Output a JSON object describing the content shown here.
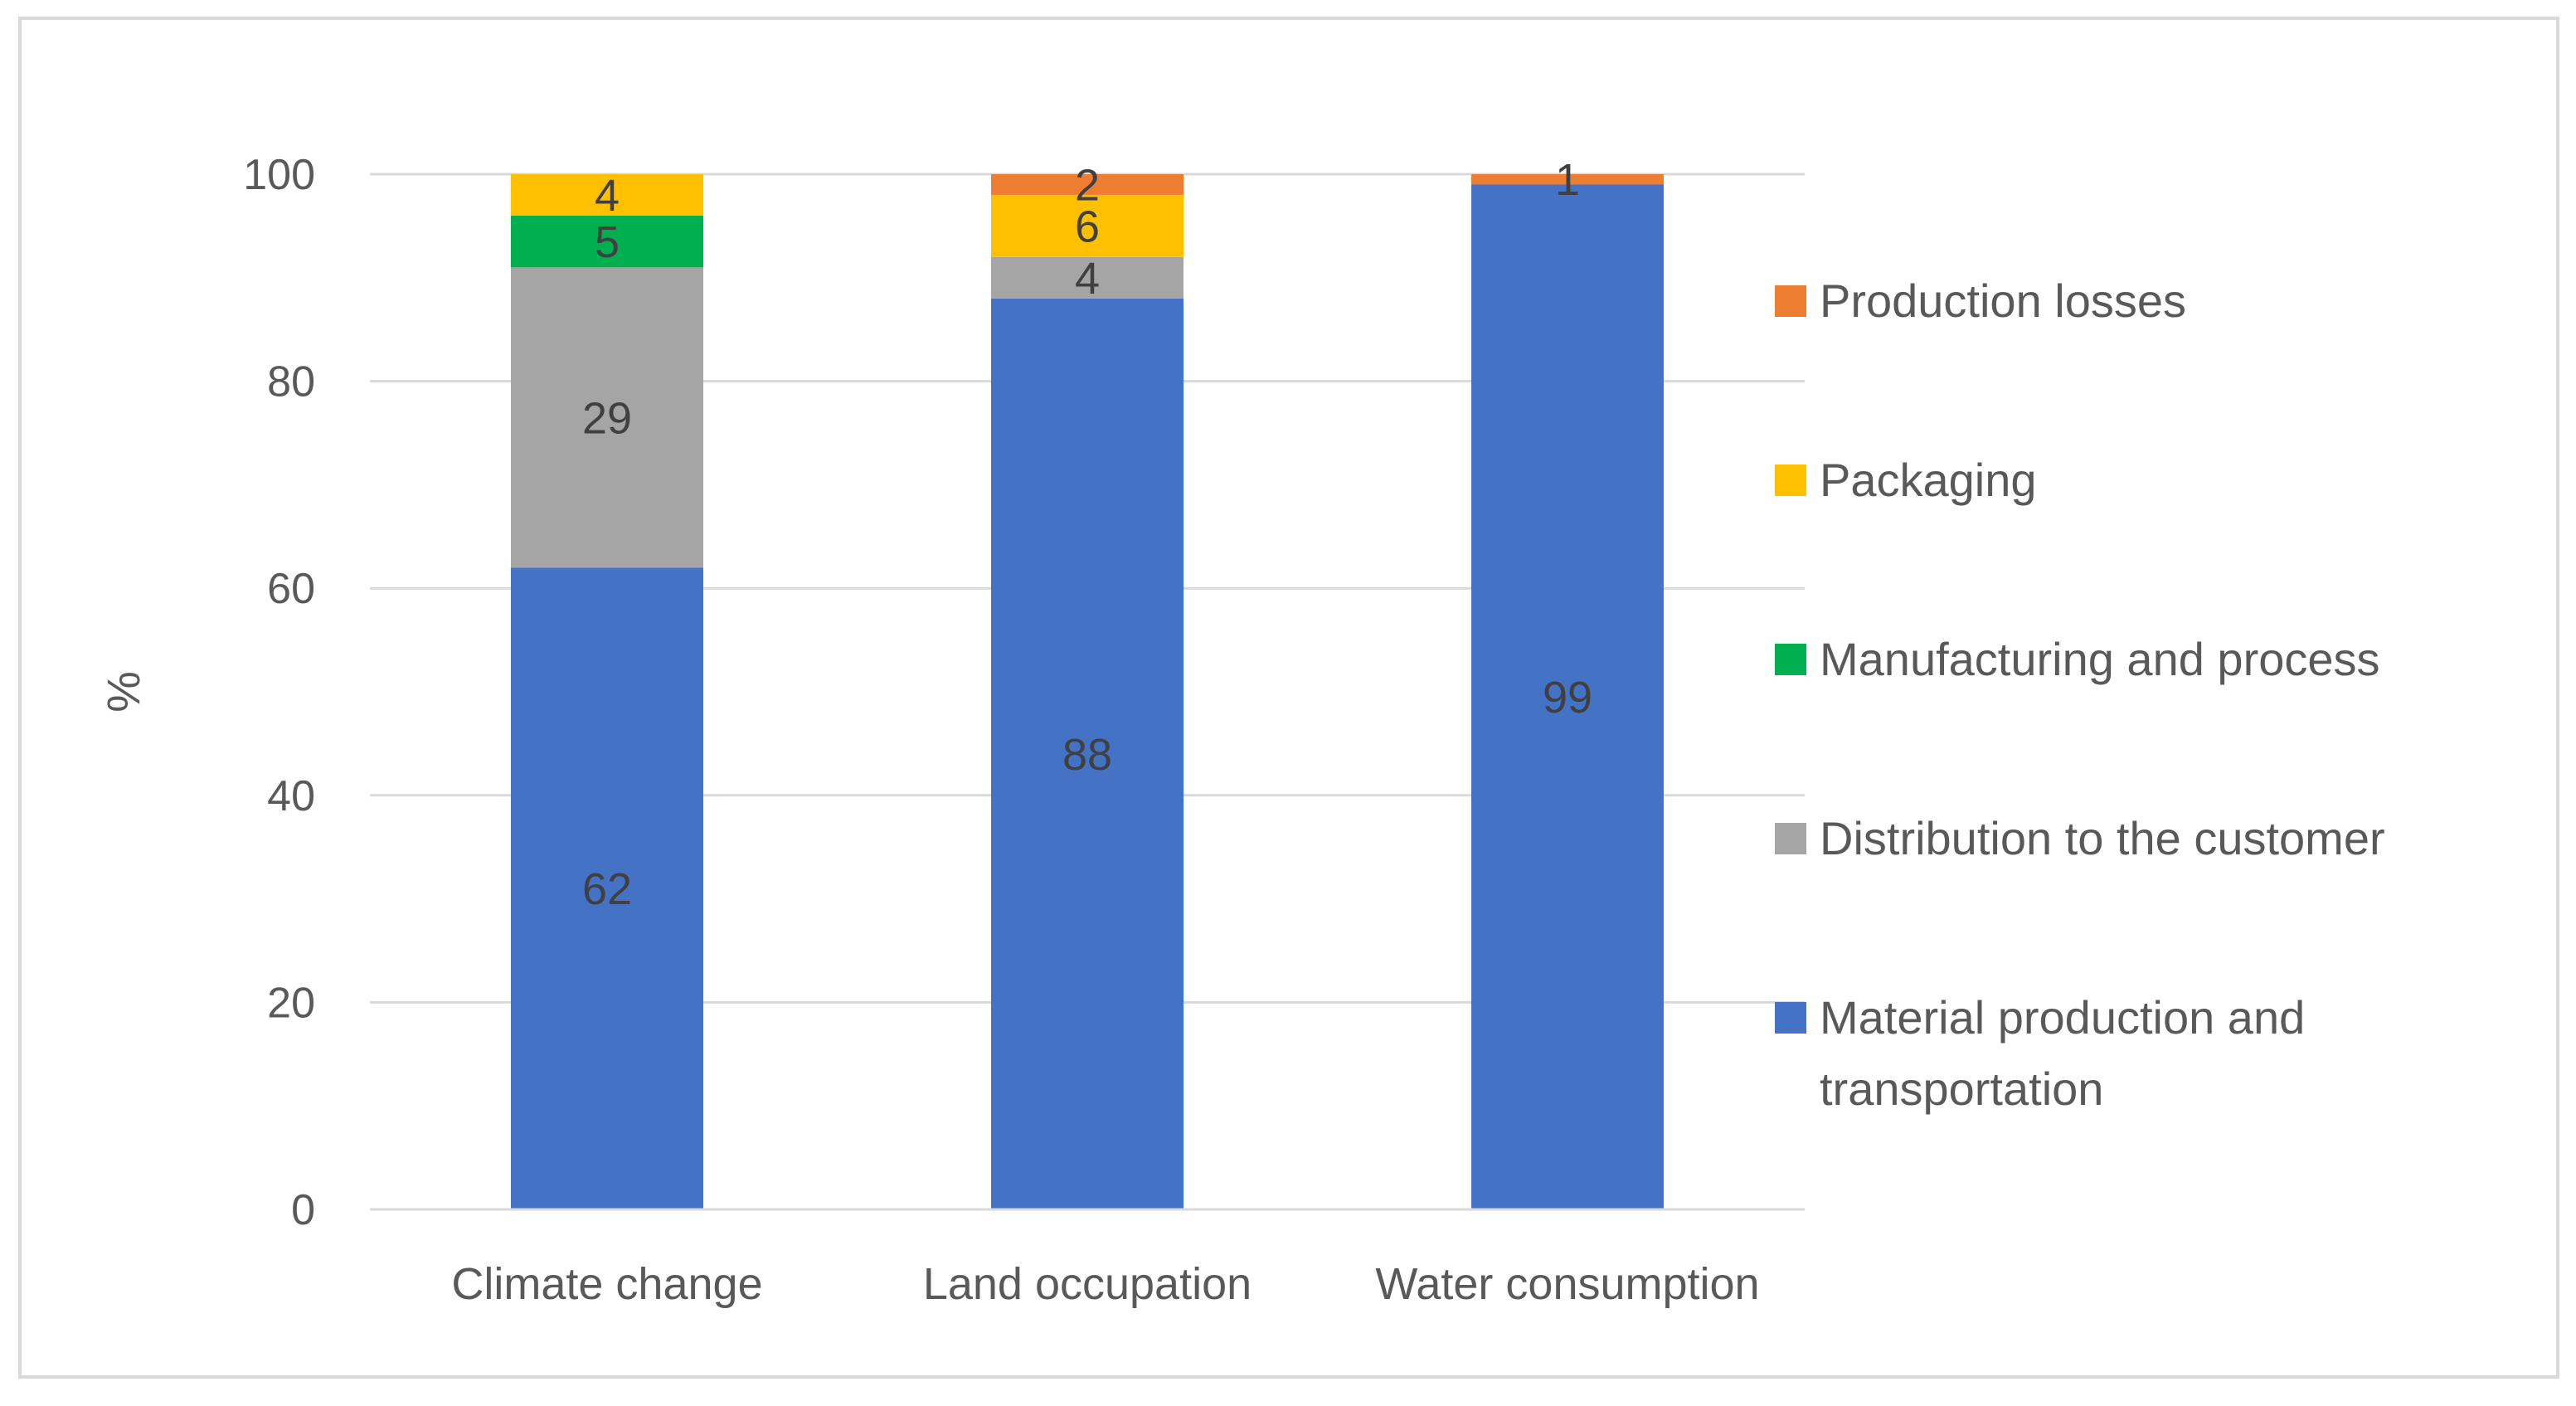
{
  "chart_data": {
    "type": "bar",
    "stacked": true,
    "categories": [
      "Climate change",
      "Land occupation",
      "Water consumption"
    ],
    "ylabel": "%",
    "xlabel": "",
    "ylim": [
      0,
      100
    ],
    "yticks": [
      0,
      20,
      40,
      60,
      80,
      100
    ],
    "grid": true,
    "legend_position": "right",
    "series": [
      {
        "name": "Material production and transportation",
        "legend_lines": [
          "Material production and",
          "transportation"
        ],
        "color": "#4472C4",
        "values": [
          62,
          88,
          99
        ],
        "labels": [
          "62",
          "88",
          "99"
        ]
      },
      {
        "name": "Distribution to the customer",
        "legend_lines": [
          "Distribution to the customer"
        ],
        "color": "#A5A5A5",
        "values": [
          29,
          4,
          0
        ],
        "labels": [
          "29",
          "4",
          ""
        ]
      },
      {
        "name": "Manufacturing and process",
        "legend_lines": [
          "Manufacturing and process"
        ],
        "color": "#00B050",
        "values": [
          5,
          0,
          0
        ],
        "labels": [
          "5",
          "",
          ""
        ]
      },
      {
        "name": "Packaging",
        "legend_lines": [
          "Packaging"
        ],
        "color": "#FFC000",
        "values": [
          4,
          6,
          0
        ],
        "labels": [
          "4",
          "6",
          ""
        ]
      },
      {
        "name": "Production losses",
        "legend_lines": [
          "Production losses"
        ],
        "color": "#ED7D31",
        "values": [
          0,
          2,
          1
        ],
        "labels": [
          "",
          "2",
          "1"
        ]
      }
    ]
  }
}
